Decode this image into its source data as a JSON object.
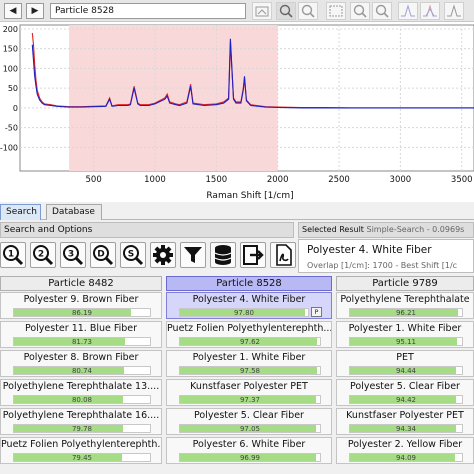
{
  "header": {
    "back_label": "◀",
    "forward_label": "▶",
    "title": "Particle 8528"
  },
  "chart_data": {
    "type": "line",
    "title": "",
    "xlabel": "Raman Shift [1/cm]",
    "ylabel": "",
    "xlim": [
      -100,
      3600
    ],
    "ylim": [
      -160,
      210
    ],
    "x_ticks": [
      500,
      1000,
      1500,
      2000,
      2500,
      3000,
      3500
    ],
    "y_ticks": [
      200,
      150,
      100,
      50,
      0,
      -50,
      -100
    ],
    "highlight_range": [
      300,
      2000
    ],
    "highlight_color": "#f8d8d8",
    "grid": true,
    "series": [
      {
        "color": "#e02020",
        "x": [
          0,
          10,
          20,
          30,
          40,
          60,
          80,
          100,
          150,
          200,
          300,
          400,
          500,
          600,
          630,
          650,
          700,
          780,
          800,
          830,
          860,
          880,
          950,
          1000,
          1080,
          1100,
          1120,
          1170,
          1200,
          1260,
          1290,
          1310,
          1400,
          1500,
          1560,
          1600,
          1615,
          1640,
          1660,
          1700,
          1720,
          1730,
          1745,
          1780,
          1900,
          2000,
          2200,
          2400,
          2600,
          2800,
          3000,
          3200,
          3400,
          3600
        ],
        "y": [
          190,
          160,
          110,
          70,
          45,
          25,
          15,
          10,
          8,
          5,
          3,
          3,
          4,
          5,
          25,
          5,
          8,
          8,
          10,
          55,
          12,
          8,
          8,
          12,
          25,
          35,
          15,
          10,
          8,
          15,
          60,
          12,
          8,
          10,
          15,
          25,
          165,
          25,
          15,
          15,
          50,
          75,
          20,
          8,
          3,
          2,
          1,
          1,
          0,
          0,
          0,
          0,
          0,
          0
        ]
      },
      {
        "color": "#2020c0",
        "x": [
          0,
          10,
          20,
          30,
          40,
          60,
          80,
          100,
          150,
          200,
          300,
          400,
          500,
          600,
          630,
          650,
          700,
          780,
          800,
          830,
          860,
          880,
          950,
          1000,
          1080,
          1100,
          1120,
          1170,
          1200,
          1260,
          1290,
          1310,
          1400,
          1500,
          1560,
          1600,
          1615,
          1640,
          1660,
          1700,
          1720,
          1730,
          1745,
          1780,
          1900,
          2000,
          2200,
          2400,
          2600,
          2800,
          3000,
          3200,
          3400,
          3600
        ],
        "y": [
          160,
          120,
          80,
          55,
          35,
          20,
          12,
          8,
          6,
          4,
          2,
          2,
          3,
          4,
          22,
          4,
          6,
          6,
          8,
          50,
          10,
          6,
          6,
          10,
          22,
          30,
          12,
          8,
          6,
          12,
          55,
          10,
          6,
          8,
          12,
          22,
          175,
          22,
          12,
          12,
          45,
          80,
          18,
          6,
          2,
          1,
          0,
          0,
          0,
          0,
          0,
          0,
          0,
          0
        ]
      }
    ]
  },
  "tabs": [
    {
      "label": "Search"
    },
    {
      "label": "Database"
    }
  ],
  "search_options": {
    "title": "Search and Options",
    "tools": [
      {
        "name": "zoom-1-icon",
        "glyph": "1"
      },
      {
        "name": "zoom-2-icon",
        "glyph": "2"
      },
      {
        "name": "zoom-3-icon",
        "glyph": "3"
      },
      {
        "name": "zoom-d-icon",
        "glyph": "D"
      },
      {
        "name": "zoom-s-icon",
        "glyph": "S"
      },
      {
        "name": "gear-icon"
      },
      {
        "name": "filter-icon"
      },
      {
        "name": "database-icon"
      },
      {
        "name": "export-icon"
      },
      {
        "name": "pdf-icon"
      }
    ]
  },
  "selected_result": {
    "title": "Selected Result",
    "mode": "Simple-Search - 0.0969s",
    "name": "Polyester 4. White Fiber",
    "detail": "Overlap [1/cm]: 1700 - Best Shift [1/c"
  },
  "columns": [
    {
      "header": "Particle 8482",
      "active": false,
      "results": [
        {
          "name": "Polyester 9. Brown Fiber",
          "score": "86.19",
          "value": 86.19
        },
        {
          "name": "Polyester 11. Blue Fiber",
          "score": "81.73",
          "value": 81.73
        },
        {
          "name": "Polyester 8. Brown Fiber",
          "score": "80.74",
          "value": 80.74
        },
        {
          "name": "Polyethylene Terephthalate 13....",
          "score": "80.08",
          "value": 80.08
        },
        {
          "name": "Polyethylene Terephthalate 16....",
          "score": "79.78",
          "value": 79.78
        },
        {
          "name": "Puetz Folien Polyethylenterephth...",
          "score": "79.45",
          "value": 79.45
        }
      ]
    },
    {
      "header": "Particle 8528",
      "active": true,
      "results": [
        {
          "name": "Polyester 4. White Fiber",
          "score": "97.80",
          "value": 97.8,
          "badge": "P"
        },
        {
          "name": "Puetz Folien Polyethylenterephth...",
          "score": "97.62",
          "value": 97.62
        },
        {
          "name": "Polyester 1. White Fiber",
          "score": "97.58",
          "value": 97.58
        },
        {
          "name": "Kunstfaser Polyester PET",
          "score": "97.37",
          "value": 97.37
        },
        {
          "name": "Polyester 5. Clear Fiber",
          "score": "97.05",
          "value": 97.05
        },
        {
          "name": "Polyester 6. White Fiber",
          "score": "96.99",
          "value": 96.99
        }
      ]
    },
    {
      "header": "Particle 9789",
      "active": false,
      "results": [
        {
          "name": "Polyethylene Terephthalate",
          "score": "96.21",
          "value": 96.21
        },
        {
          "name": "Polyester 1. White Fiber",
          "score": "95.11",
          "value": 95.11
        },
        {
          "name": "PET",
          "score": "94.44",
          "value": 94.44
        },
        {
          "name": "Polyester 5. Clear Fiber",
          "score": "94.42",
          "value": 94.42
        },
        {
          "name": "Kunstfaser Polyester PET",
          "score": "94.34",
          "value": 94.34
        },
        {
          "name": "Polyester 2. Yellow Fiber",
          "score": "94.09",
          "value": 94.09
        }
      ]
    }
  ]
}
